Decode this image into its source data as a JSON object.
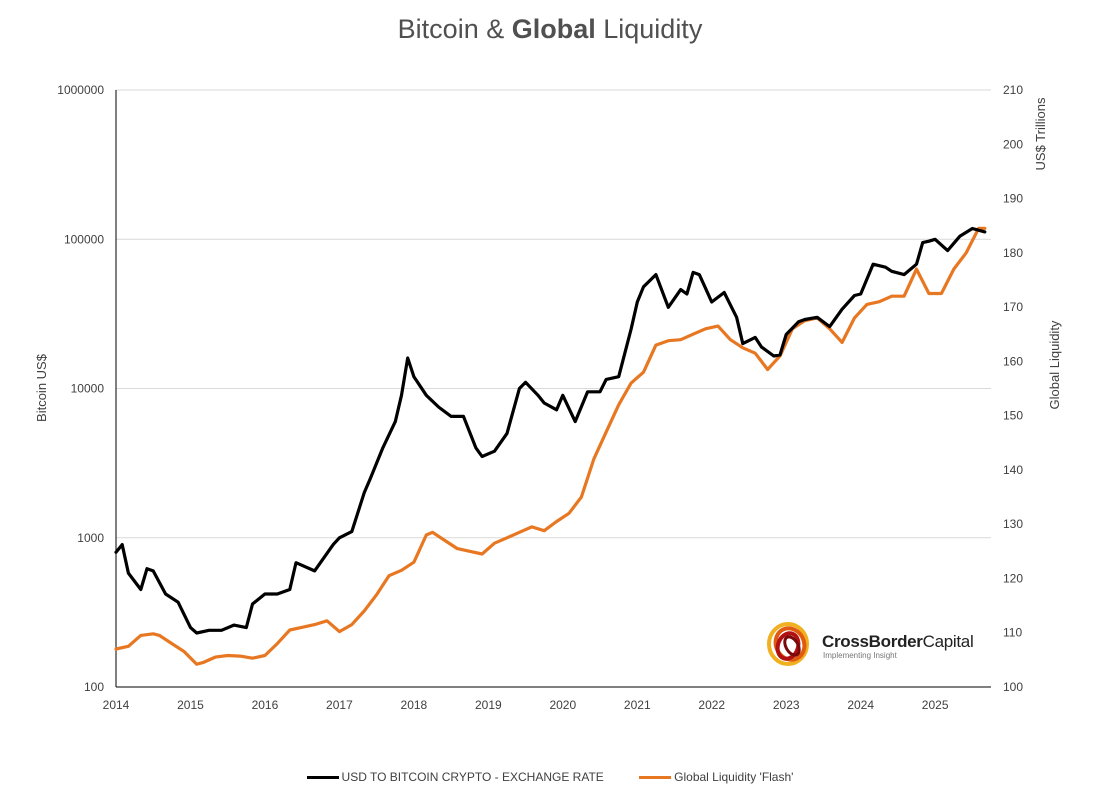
{
  "chart_data": {
    "type": "line",
    "title_parts": [
      "Bitcoin & ",
      "Global",
      " Liquidity"
    ],
    "x_ticks": [
      "2014",
      "2015",
      "2016",
      "2017",
      "2018",
      "2019",
      "2020",
      "2021",
      "2022",
      "2023",
      "2024",
      "2025"
    ],
    "y_left": {
      "label": "Bitcoin US$",
      "scale": "log",
      "range": [
        100,
        1000000
      ],
      "ticks": [
        "100",
        "1000",
        "10000",
        "100000",
        "1000000"
      ]
    },
    "y_right": {
      "label": "Global Liquidity",
      "unit_label": "US$ Trillions",
      "range": [
        100,
        210
      ],
      "ticks": [
        "100",
        "110",
        "120",
        "130",
        "140",
        "150",
        "160",
        "170",
        "180",
        "190",
        "200",
        "210"
      ]
    },
    "grid": "horizontal, left axis decades",
    "legend_position": "bottom",
    "series": [
      {
        "name": "USD TO BITCOIN CRYPTO - EXCHANGE RATE",
        "axis": "left",
        "color": "#000000",
        "points": [
          [
            "2014-01",
            800
          ],
          [
            "2014-02",
            900
          ],
          [
            "2014-03",
            580
          ],
          [
            "2014-05",
            450
          ],
          [
            "2014-06",
            620
          ],
          [
            "2014-07",
            600
          ],
          [
            "2014-09",
            420
          ],
          [
            "2014-11",
            370
          ],
          [
            "2015-01",
            250
          ],
          [
            "2015-02",
            230
          ],
          [
            "2015-04",
            240
          ],
          [
            "2015-06",
            240
          ],
          [
            "2015-08",
            260
          ],
          [
            "2015-10",
            250
          ],
          [
            "2015-11",
            360
          ],
          [
            "2016-01",
            420
          ],
          [
            "2016-03",
            420
          ],
          [
            "2016-05",
            450
          ],
          [
            "2016-06",
            680
          ],
          [
            "2016-09",
            600
          ],
          [
            "2016-12",
            900
          ],
          [
            "2017-01",
            1000
          ],
          [
            "2017-03",
            1100
          ],
          [
            "2017-05",
            2000
          ],
          [
            "2017-06",
            2500
          ],
          [
            "2017-08",
            4000
          ],
          [
            "2017-10",
            6000
          ],
          [
            "2017-11",
            9000
          ],
          [
            "2017-12",
            16000
          ],
          [
            "2018-01",
            12000
          ],
          [
            "2018-03",
            9000
          ],
          [
            "2018-05",
            7500
          ],
          [
            "2018-07",
            6500
          ],
          [
            "2018-09",
            6500
          ],
          [
            "2018-11",
            4000
          ],
          [
            "2018-12",
            3500
          ],
          [
            "2019-02",
            3800
          ],
          [
            "2019-04",
            5000
          ],
          [
            "2019-06",
            10000
          ],
          [
            "2019-07",
            11000
          ],
          [
            "2019-09",
            9000
          ],
          [
            "2019-10",
            8000
          ],
          [
            "2019-12",
            7200
          ],
          [
            "2020-01",
            9000
          ],
          [
            "2020-03",
            6000
          ],
          [
            "2020-05",
            9500
          ],
          [
            "2020-07",
            9500
          ],
          [
            "2020-08",
            11500
          ],
          [
            "2020-10",
            12000
          ],
          [
            "2020-12",
            25000
          ],
          [
            "2021-01",
            38000
          ],
          [
            "2021-02",
            48000
          ],
          [
            "2021-04",
            58000
          ],
          [
            "2021-06",
            35000
          ],
          [
            "2021-08",
            46000
          ],
          [
            "2021-09",
            43000
          ],
          [
            "2021-10",
            60000
          ],
          [
            "2021-11",
            58000
          ],
          [
            "2021-12",
            47000
          ],
          [
            "2022-01",
            38000
          ],
          [
            "2022-03",
            44000
          ],
          [
            "2022-05",
            30000
          ],
          [
            "2022-06",
            20000
          ],
          [
            "2022-08",
            22000
          ],
          [
            "2022-09",
            19000
          ],
          [
            "2022-11",
            16500
          ],
          [
            "2022-12",
            16800
          ],
          [
            "2023-01",
            23000
          ],
          [
            "2023-03",
            28000
          ],
          [
            "2023-04",
            29000
          ],
          [
            "2023-06",
            30000
          ],
          [
            "2023-08",
            26000
          ],
          [
            "2023-10",
            34000
          ],
          [
            "2023-12",
            42000
          ],
          [
            "2024-01",
            43000
          ],
          [
            "2024-03",
            68000
          ],
          [
            "2024-05",
            65000
          ],
          [
            "2024-06",
            61000
          ],
          [
            "2024-08",
            58000
          ],
          [
            "2024-10",
            68000
          ],
          [
            "2024-11",
            95000
          ],
          [
            "2024-12",
            97000
          ],
          [
            "2025-01",
            100000
          ],
          [
            "2025-03",
            84000
          ],
          [
            "2025-04",
            94000
          ],
          [
            "2025-05",
            105000
          ],
          [
            "2025-07",
            118000
          ],
          [
            "2025-09",
            112000
          ]
        ]
      },
      {
        "name": "Global Liquidity 'Flash'",
        "axis": "right",
        "color": "#E87722",
        "points": [
          [
            "2014-01",
            107
          ],
          [
            "2014-03",
            107.5
          ],
          [
            "2014-05",
            109.5
          ],
          [
            "2014-07",
            109.8
          ],
          [
            "2014-08",
            109.5
          ],
          [
            "2014-10",
            108
          ],
          [
            "2014-12",
            106.5
          ],
          [
            "2015-02",
            104.2
          ],
          [
            "2015-03",
            104.5
          ],
          [
            "2015-05",
            105.5
          ],
          [
            "2015-07",
            105.8
          ],
          [
            "2015-09",
            105.7
          ],
          [
            "2015-11",
            105.3
          ],
          [
            "2016-01",
            105.8
          ],
          [
            "2016-03",
            108
          ],
          [
            "2016-05",
            110.5
          ],
          [
            "2016-07",
            111
          ],
          [
            "2016-09",
            111.5
          ],
          [
            "2016-11",
            112.2
          ],
          [
            "2017-01",
            110.2
          ],
          [
            "2017-03",
            111.5
          ],
          [
            "2017-05",
            114
          ],
          [
            "2017-07",
            117
          ],
          [
            "2017-09",
            120.5
          ],
          [
            "2017-11",
            121.5
          ],
          [
            "2018-01",
            123
          ],
          [
            "2018-03",
            128
          ],
          [
            "2018-04",
            128.5
          ],
          [
            "2018-06",
            127
          ],
          [
            "2018-08",
            125.5
          ],
          [
            "2018-10",
            125
          ],
          [
            "2018-12",
            124.5
          ],
          [
            "2019-02",
            126.5
          ],
          [
            "2019-04",
            127.5
          ],
          [
            "2019-06",
            128.5
          ],
          [
            "2019-08",
            129.5
          ],
          [
            "2019-10",
            128.8
          ],
          [
            "2019-12",
            130.5
          ],
          [
            "2020-02",
            132
          ],
          [
            "2020-04",
            135
          ],
          [
            "2020-06",
            142
          ],
          [
            "2020-08",
            147
          ],
          [
            "2020-10",
            152
          ],
          [
            "2020-12",
            156
          ],
          [
            "2021-02",
            158
          ],
          [
            "2021-04",
            163
          ],
          [
            "2021-06",
            163.8
          ],
          [
            "2021-08",
            164
          ],
          [
            "2021-10",
            165
          ],
          [
            "2021-12",
            166
          ],
          [
            "2022-02",
            166.5
          ],
          [
            "2022-04",
            164
          ],
          [
            "2022-06",
            162.5
          ],
          [
            "2022-08",
            161.5
          ],
          [
            "2022-10",
            158.5
          ],
          [
            "2022-12",
            161
          ],
          [
            "2023-02",
            166
          ],
          [
            "2023-04",
            167.5
          ],
          [
            "2023-06",
            168
          ],
          [
            "2023-08",
            166
          ],
          [
            "2023-10",
            163.5
          ],
          [
            "2023-12",
            168
          ],
          [
            "2024-02",
            170.5
          ],
          [
            "2024-04",
            171
          ],
          [
            "2024-06",
            172
          ],
          [
            "2024-08",
            172
          ],
          [
            "2024-10",
            177
          ],
          [
            "2024-12",
            172.5
          ],
          [
            "2025-02",
            172.5
          ],
          [
            "2025-04",
            177
          ],
          [
            "2025-06",
            180
          ],
          [
            "2025-08",
            184.5
          ],
          [
            "2025-09",
            184.5
          ]
        ]
      }
    ]
  },
  "logo": {
    "name_bold": "CrossBorder",
    "name_regular": "Capital",
    "tagline": "Implementing Insight"
  }
}
